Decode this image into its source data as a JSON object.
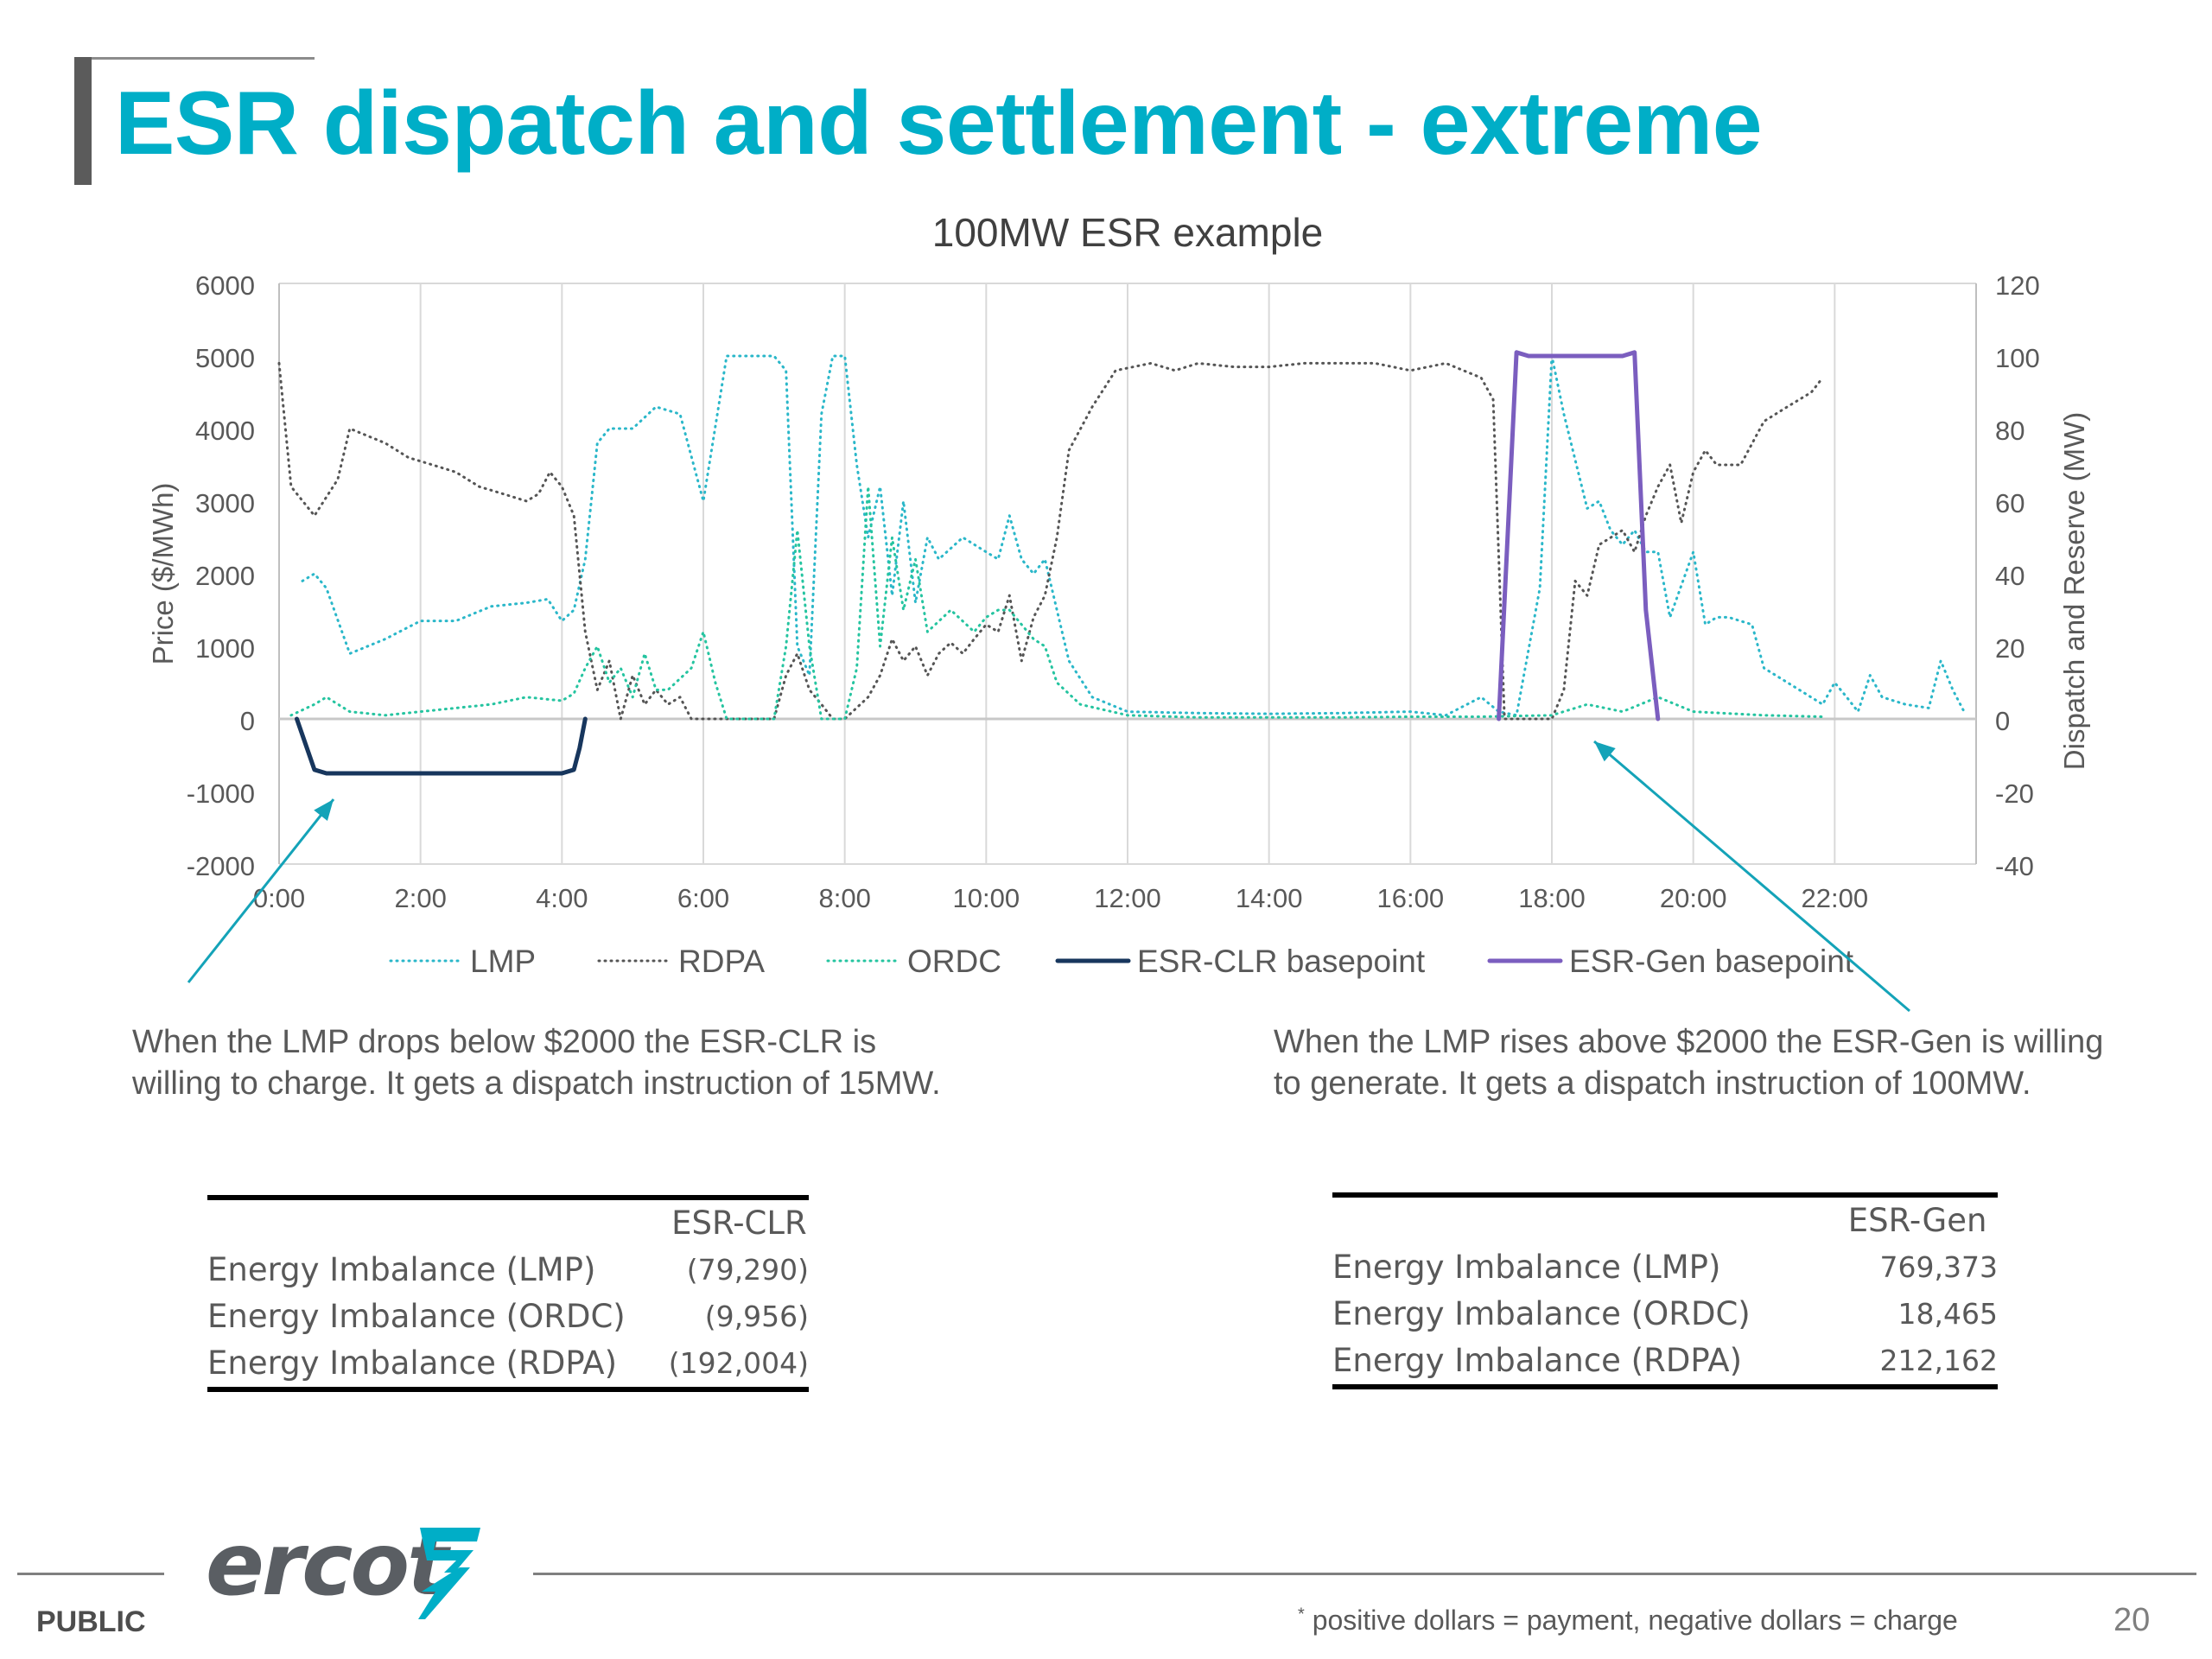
{
  "slide": {
    "title": "ESR dispatch and settlement - extreme",
    "footer_label": "PUBLIC",
    "footnote_mark": "*",
    "footnote": " positive dollars = payment, negative dollars = charge",
    "page_number": "20",
    "logo_text": "ercot"
  },
  "annotations": {
    "left": [
      "When the LMP drops below $2000 the ESR-CLR is",
      "willing to charge. It gets a dispatch instruction of 15MW."
    ],
    "right": [
      "When the LMP rises above $2000 the ESR-Gen is willing",
      "to generate. It gets a dispatch instruction of 100MW."
    ]
  },
  "tables": {
    "clr": {
      "header": "ESR-CLR",
      "rows": [
        {
          "label": "Energy Imbalance (LMP)",
          "value": "(79,290)"
        },
        {
          "label": "Energy Imbalance (ORDC)",
          "value": "(9,956)"
        },
        {
          "label": "Energy Imbalance (RDPA)",
          "value": "(192,004)"
        }
      ]
    },
    "gen": {
      "header": "ESR-Gen",
      "rows": [
        {
          "label": "Energy Imbalance (LMP)",
          "value": "769,373"
        },
        {
          "label": "Energy Imbalance (ORDC)",
          "value": "18,465"
        },
        {
          "label": "Energy Imbalance (RDPA)",
          "value": "212,162"
        }
      ]
    }
  },
  "chart_data": {
    "type": "line",
    "title": "100MW ESR example",
    "ylabel": "Price ($/MWh)",
    "y2label": "Dispatch and Reserve (MW)",
    "ylim": [
      -2000,
      6000
    ],
    "y2lim": [
      -40,
      120
    ],
    "yticks": [
      6000,
      5000,
      4000,
      3000,
      2000,
      1000,
      0,
      -1000,
      -2000
    ],
    "y2ticks": [
      120,
      100,
      80,
      60,
      40,
      20,
      0,
      -20,
      -40
    ],
    "xticks": [
      "0:00",
      "2:00",
      "4:00",
      "6:00",
      "8:00",
      "10:00",
      "12:00",
      "14:00",
      "16:00",
      "18:00",
      "20:00",
      "22:00"
    ],
    "xlim_hours": [
      0,
      24
    ],
    "grid": "vertical",
    "legend_position": "bottom",
    "x_unit": "hours since 0:00",
    "series": [
      {
        "name": "LMP",
        "axis": "left",
        "style": "dotted",
        "color": "#2ab7c9",
        "points": [
          [
            0.33,
            1900
          ],
          [
            0.5,
            2000
          ],
          [
            0.67,
            1800
          ],
          [
            1.0,
            900
          ],
          [
            1.5,
            1100
          ],
          [
            2.0,
            1350
          ],
          [
            2.5,
            1350
          ],
          [
            3.0,
            1550
          ],
          [
            3.5,
            1600
          ],
          [
            3.8,
            1650
          ],
          [
            4.0,
            1350
          ],
          [
            4.17,
            1500
          ],
          [
            4.33,
            2200
          ],
          [
            4.5,
            3800
          ],
          [
            4.67,
            4000
          ],
          [
            5.0,
            4000
          ],
          [
            5.33,
            4300
          ],
          [
            5.67,
            4200
          ],
          [
            6.0,
            3000
          ],
          [
            6.33,
            5000
          ],
          [
            7.0,
            5000
          ],
          [
            7.17,
            4800
          ],
          [
            7.33,
            1000
          ],
          [
            7.5,
            600
          ],
          [
            7.67,
            4200
          ],
          [
            7.83,
            5000
          ],
          [
            8.0,
            5000
          ],
          [
            8.17,
            3500
          ],
          [
            8.33,
            2500
          ],
          [
            8.5,
            3200
          ],
          [
            8.67,
            1700
          ],
          [
            8.83,
            3000
          ],
          [
            9.0,
            1600
          ],
          [
            9.17,
            2500
          ],
          [
            9.33,
            2200
          ],
          [
            9.67,
            2500
          ],
          [
            10.0,
            2300
          ],
          [
            10.17,
            2200
          ],
          [
            10.33,
            2800
          ],
          [
            10.5,
            2200
          ],
          [
            10.67,
            2000
          ],
          [
            10.83,
            2200
          ],
          [
            11.0,
            1500
          ],
          [
            11.17,
            800
          ],
          [
            11.5,
            300
          ],
          [
            12.0,
            100
          ],
          [
            13.0,
            80
          ],
          [
            14.0,
            70
          ],
          [
            15.0,
            80
          ],
          [
            16.0,
            100
          ],
          [
            16.5,
            50
          ],
          [
            17.0,
            300
          ],
          [
            17.25,
            100
          ],
          [
            17.5,
            50
          ],
          [
            17.83,
            1800
          ],
          [
            18.0,
            5000
          ],
          [
            18.17,
            4200
          ],
          [
            18.5,
            2900
          ],
          [
            18.67,
            3000
          ],
          [
            18.83,
            2600
          ],
          [
            19.0,
            2400
          ],
          [
            19.17,
            2600
          ],
          [
            19.33,
            2300
          ],
          [
            19.5,
            2300
          ],
          [
            19.67,
            1400
          ],
          [
            20.0,
            2300
          ],
          [
            20.17,
            1300
          ],
          [
            20.33,
            1400
          ],
          [
            20.5,
            1400
          ],
          [
            20.83,
            1300
          ],
          [
            21.0,
            700
          ],
          [
            21.5,
            400
          ],
          [
            21.83,
            200
          ],
          [
            22.0,
            500
          ],
          [
            22.17,
            300
          ],
          [
            22.33,
            100
          ],
          [
            22.5,
            600
          ],
          [
            22.67,
            300
          ],
          [
            23.0,
            200
          ],
          [
            23.33,
            150
          ],
          [
            23.5,
            800
          ],
          [
            23.67,
            400
          ],
          [
            23.83,
            100
          ]
        ]
      },
      {
        "name": "RDPA",
        "axis": "left",
        "style": "dotted",
        "color": "#555555",
        "points": [
          [
            0.0,
            4900
          ],
          [
            0.17,
            3200
          ],
          [
            0.5,
            2800
          ],
          [
            0.83,
            3300
          ],
          [
            1.0,
            4000
          ],
          [
            1.5,
            3800
          ],
          [
            1.83,
            3600
          ],
          [
            2.17,
            3500
          ],
          [
            2.5,
            3400
          ],
          [
            2.83,
            3200
          ],
          [
            3.17,
            3100
          ],
          [
            3.5,
            3000
          ],
          [
            3.67,
            3100
          ],
          [
            3.83,
            3400
          ],
          [
            4.0,
            3200
          ],
          [
            4.17,
            2800
          ],
          [
            4.33,
            1200
          ],
          [
            4.5,
            400
          ],
          [
            4.67,
            800
          ],
          [
            4.83,
            0
          ],
          [
            5.0,
            600
          ],
          [
            5.17,
            200
          ],
          [
            5.33,
            400
          ],
          [
            5.5,
            200
          ],
          [
            5.67,
            300
          ],
          [
            5.83,
            0
          ],
          [
            6.0,
            0
          ],
          [
            6.33,
            0
          ],
          [
            7.0,
            0
          ],
          [
            7.17,
            600
          ],
          [
            7.33,
            900
          ],
          [
            7.5,
            400
          ],
          [
            7.67,
            200
          ],
          [
            7.83,
            0
          ],
          [
            8.0,
            0
          ],
          [
            8.33,
            300
          ],
          [
            8.5,
            600
          ],
          [
            8.67,
            1100
          ],
          [
            8.83,
            800
          ],
          [
            9.0,
            1000
          ],
          [
            9.17,
            600
          ],
          [
            9.33,
            900
          ],
          [
            9.5,
            1050
          ],
          [
            9.67,
            900
          ],
          [
            9.83,
            1100
          ],
          [
            10.0,
            1300
          ],
          [
            10.17,
            1200
          ],
          [
            10.33,
            1700
          ],
          [
            10.5,
            800
          ],
          [
            10.67,
            1400
          ],
          [
            10.83,
            1700
          ],
          [
            11.0,
            2500
          ],
          [
            11.17,
            3700
          ],
          [
            11.5,
            4300
          ],
          [
            11.83,
            4800
          ],
          [
            12.33,
            4900
          ],
          [
            12.67,
            4800
          ],
          [
            13.0,
            4900
          ],
          [
            13.5,
            4850
          ],
          [
            14.0,
            4850
          ],
          [
            14.5,
            4900
          ],
          [
            15.0,
            4900
          ],
          [
            15.5,
            4900
          ],
          [
            16.0,
            4800
          ],
          [
            16.5,
            4900
          ],
          [
            17.0,
            4700
          ],
          [
            17.17,
            4400
          ],
          [
            17.33,
            0
          ],
          [
            17.83,
            0
          ],
          [
            18.0,
            0
          ],
          [
            18.17,
            400
          ],
          [
            18.33,
            1900
          ],
          [
            18.5,
            1700
          ],
          [
            18.67,
            2400
          ],
          [
            19.0,
            2600
          ],
          [
            19.17,
            2300
          ],
          [
            19.33,
            2800
          ],
          [
            19.5,
            3200
          ],
          [
            19.67,
            3500
          ],
          [
            19.83,
            2700
          ],
          [
            20.0,
            3400
          ],
          [
            20.17,
            3700
          ],
          [
            20.33,
            3500
          ],
          [
            20.67,
            3500
          ],
          [
            21.0,
            4100
          ],
          [
            21.33,
            4300
          ],
          [
            21.67,
            4500
          ],
          [
            21.83,
            4700
          ]
        ]
      },
      {
        "name": "ORDC",
        "axis": "left",
        "style": "dotted",
        "color": "#25c4a0",
        "points": [
          [
            0.17,
            50
          ],
          [
            0.5,
            200
          ],
          [
            0.67,
            300
          ],
          [
            1.0,
            100
          ],
          [
            1.5,
            50
          ],
          [
            2.0,
            100
          ],
          [
            2.5,
            150
          ],
          [
            3.0,
            200
          ],
          [
            3.5,
            300
          ],
          [
            4.0,
            250
          ],
          [
            4.17,
            350
          ],
          [
            4.33,
            700
          ],
          [
            4.5,
            1000
          ],
          [
            4.67,
            500
          ],
          [
            4.83,
            700
          ],
          [
            5.0,
            300
          ],
          [
            5.17,
            900
          ],
          [
            5.33,
            400
          ],
          [
            5.5,
            400
          ],
          [
            5.83,
            700
          ],
          [
            6.0,
            1200
          ],
          [
            6.17,
            500
          ],
          [
            6.33,
            0
          ],
          [
            7.0,
            0
          ],
          [
            7.17,
            1000
          ],
          [
            7.33,
            2600
          ],
          [
            7.5,
            1000
          ],
          [
            7.67,
            0
          ],
          [
            7.83,
            0
          ],
          [
            8.0,
            0
          ],
          [
            8.17,
            700
          ],
          [
            8.33,
            3200
          ],
          [
            8.5,
            1000
          ],
          [
            8.67,
            2500
          ],
          [
            8.83,
            1500
          ],
          [
            9.0,
            2200
          ],
          [
            9.17,
            1200
          ],
          [
            9.5,
            1500
          ],
          [
            9.83,
            1200
          ],
          [
            10.0,
            1400
          ],
          [
            10.17,
            1500
          ],
          [
            10.33,
            1500
          ],
          [
            10.67,
            1100
          ],
          [
            10.83,
            1000
          ],
          [
            11.0,
            500
          ],
          [
            11.33,
            200
          ],
          [
            12.0,
            50
          ],
          [
            13.0,
            20
          ],
          [
            14.0,
            20
          ],
          [
            15.0,
            20
          ],
          [
            16.0,
            30
          ],
          [
            17.0,
            30
          ],
          [
            18.0,
            50
          ],
          [
            18.5,
            200
          ],
          [
            19.0,
            100
          ],
          [
            19.5,
            300
          ],
          [
            20.0,
            100
          ],
          [
            21.0,
            50
          ],
          [
            21.83,
            30
          ]
        ]
      },
      {
        "name": "ESR-CLR basepoint",
        "axis": "right",
        "style": "solid",
        "color": "#17365d",
        "points": [
          [
            0.25,
            0
          ],
          [
            0.5,
            -14
          ],
          [
            0.67,
            -15
          ],
          [
            4.0,
            -15
          ],
          [
            4.17,
            -14
          ],
          [
            4.25,
            -8
          ],
          [
            4.33,
            0
          ]
        ]
      },
      {
        "name": "ESR-Gen basepoint",
        "axis": "right",
        "style": "solid",
        "color": "#7b5ebf",
        "points": [
          [
            17.25,
            0
          ],
          [
            17.5,
            101
          ],
          [
            17.67,
            100
          ],
          [
            19.0,
            100
          ],
          [
            19.17,
            101
          ],
          [
            19.33,
            30
          ],
          [
            19.5,
            0
          ]
        ]
      }
    ]
  }
}
